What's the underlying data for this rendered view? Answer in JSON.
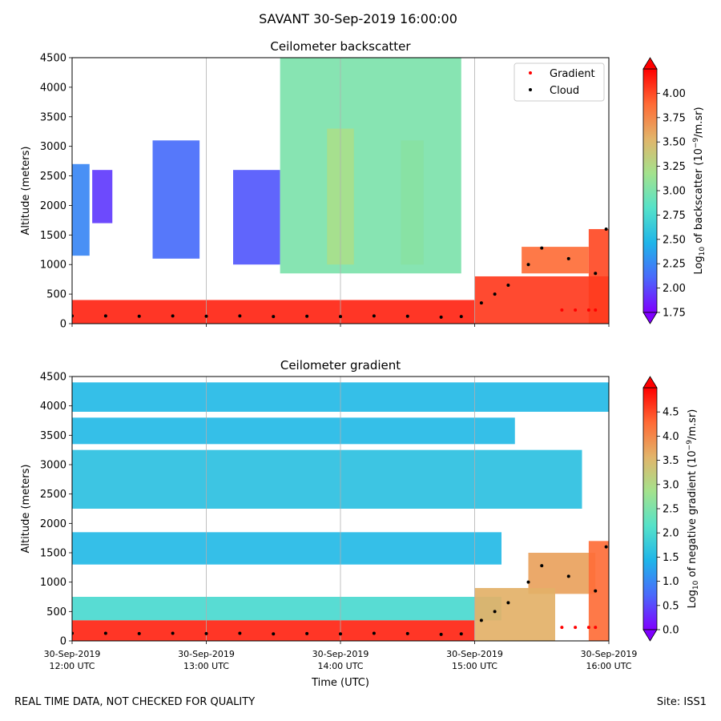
{
  "figure": {
    "title": "SAVANT 30-Sep-2019 16:00:00",
    "footer_left": "REAL TIME DATA, NOT CHECKED FOR QUALITY",
    "footer_right": "Site: ISS1"
  },
  "colors": {
    "cmap": [
      "#7f00ff",
      "#4a69fb",
      "#1fb5e9",
      "#55e2c9",
      "#a4e28d",
      "#e2b46a",
      "#ff6a35",
      "#ff0000"
    ],
    "gradient_marker": "#ff0000",
    "cloud_marker": "#000000",
    "gridline": "#b0b0b0"
  },
  "chart_data": [
    {
      "type": "heatmap",
      "title": "Ceilometer backscatter",
      "ylabel": "Altitude (meters)",
      "ylim": [
        0,
        4500
      ],
      "yticks": [
        0,
        500,
        1000,
        1500,
        2000,
        2500,
        3000,
        3500,
        4000,
        4500
      ],
      "xlim_hours": [
        12,
        16
      ],
      "x_gridlines_hours": [
        13,
        14,
        15
      ],
      "colorbar": {
        "label_prefix": "Log",
        "label_sub": "10",
        "label_mid": " of backscatter (10",
        "label_sup": "−9",
        "label_suffix": "/m.sr)",
        "range": [
          1.75,
          4.25
        ],
        "ticks": [
          "1.75",
          "2.00",
          "2.25",
          "2.50",
          "2.75",
          "3.00",
          "3.25",
          "3.50",
          "3.75",
          "4.00"
        ],
        "tick_values": [
          1.75,
          2.0,
          2.25,
          2.5,
          2.75,
          3.0,
          3.25,
          3.5,
          3.75,
          4.0
        ],
        "extend": "both"
      },
      "legend": {
        "placement": "top-right",
        "entries": [
          {
            "name": "Gradient",
            "marker": "dot-red"
          },
          {
            "name": "Cloud",
            "marker": "dot-black"
          }
        ]
      },
      "regions": [
        {
          "t0": 12.0,
          "t1": 12.13,
          "z0": 1150,
          "z1": 2700,
          "level": 0.2
        },
        {
          "t0": 12.15,
          "t1": 12.3,
          "z0": 1700,
          "z1": 2600,
          "level": 0.08
        },
        {
          "t0": 12.6,
          "t1": 12.95,
          "z0": 1100,
          "z1": 3100,
          "level": 0.15
        },
        {
          "t0": 13.2,
          "t1": 13.55,
          "z0": 1000,
          "z1": 2600,
          "level": 0.12
        },
        {
          "t0": 13.55,
          "t1": 14.9,
          "z0": 850,
          "z1": 4500,
          "level": 0.5
        },
        {
          "t0": 13.9,
          "t1": 14.1,
          "z0": 1000,
          "z1": 3300,
          "level": 0.58
        },
        {
          "t0": 14.45,
          "t1": 14.62,
          "z0": 1000,
          "z1": 3100,
          "level": 0.52
        },
        {
          "t0": 15.35,
          "t1": 15.85,
          "z0": 850,
          "z1": 1300,
          "level": 0.85
        },
        {
          "t0": 15.85,
          "t1": 16.0,
          "z0": 0,
          "z1": 1600,
          "level": 0.9
        },
        {
          "t0": 15.0,
          "t1": 16.0,
          "z0": 0,
          "z1": 800,
          "level": 0.92
        },
        {
          "t0": 12.0,
          "t1": 15.0,
          "z0": 0,
          "z1": 400,
          "level": 0.95
        }
      ],
      "gradient_series": {
        "name": "Gradient",
        "t": [
          15.65,
          15.75,
          15.85,
          15.9
        ],
        "z": [
          230,
          230,
          230,
          230
        ]
      },
      "cloud_series": {
        "name": "Cloud",
        "t": [
          12.0,
          12.25,
          12.5,
          12.75,
          13.0,
          13.25,
          13.5,
          13.75,
          14.0,
          14.25,
          14.5,
          14.75,
          14.9,
          15.05,
          15.15,
          15.25,
          15.4,
          15.5,
          15.7,
          15.9,
          15.98
        ],
        "z": [
          130,
          130,
          125,
          130,
          125,
          130,
          120,
          125,
          120,
          130,
          125,
          110,
          120,
          350,
          500,
          650,
          1000,
          1280,
          1100,
          850,
          1600
        ]
      }
    },
    {
      "type": "heatmap",
      "title": "Ceilometer gradient",
      "xlabel": "Time (UTC)",
      "ylabel": "Altitude (meters)",
      "ylim": [
        0,
        4500
      ],
      "yticks": [
        0,
        500,
        1000,
        1500,
        2000,
        2500,
        3000,
        3500,
        4000,
        4500
      ],
      "xlim_hours": [
        12,
        16
      ],
      "x_gridlines_hours": [
        13,
        14,
        15
      ],
      "x_ticks": [
        {
          "hour": 12,
          "date": "30-Sep-2019",
          "time": "12:00 UTC"
        },
        {
          "hour": 13,
          "date": "30-Sep-2019",
          "time": "13:00 UTC"
        },
        {
          "hour": 14,
          "date": "30-Sep-2019",
          "time": "14:00 UTC"
        },
        {
          "hour": 15,
          "date": "30-Sep-2019",
          "time": "15:00 UTC"
        },
        {
          "hour": 16,
          "date": "30-Sep-2019",
          "time": "16:00 UTC"
        }
      ],
      "colorbar": {
        "label_prefix": "Log",
        "label_sub": "10",
        "label_mid": " of negative gradient (10",
        "label_sup": "−9",
        "label_suffix": "/m.sr)",
        "range": [
          0.0,
          5.0
        ],
        "ticks": [
          "0.0",
          "0.5",
          "1.0",
          "1.5",
          "2.0",
          "2.5",
          "3.0",
          "3.5",
          "4.0",
          "4.5"
        ],
        "tick_values": [
          0.0,
          0.5,
          1.0,
          1.5,
          2.0,
          2.5,
          3.0,
          3.5,
          4.0,
          4.5
        ],
        "extend": "both"
      },
      "regions": [
        {
          "t0": 12.0,
          "t1": 16.0,
          "z0": 3900,
          "z1": 4400,
          "level": 0.3
        },
        {
          "t0": 12.0,
          "t1": 15.3,
          "z0": 3350,
          "z1": 3800,
          "level": 0.3
        },
        {
          "t0": 12.0,
          "t1": 15.8,
          "z0": 2250,
          "z1": 3250,
          "level": 0.32
        },
        {
          "t0": 12.0,
          "t1": 15.2,
          "z0": 1300,
          "z1": 1850,
          "level": 0.3
        },
        {
          "t0": 12.0,
          "t1": 15.2,
          "z0": 350,
          "z1": 750,
          "level": 0.4
        },
        {
          "t0": 15.4,
          "t1": 15.9,
          "z0": 800,
          "z1": 1500,
          "level": 0.75
        },
        {
          "t0": 15.0,
          "t1": 15.6,
          "z0": 0,
          "z1": 900,
          "level": 0.72
        },
        {
          "t0": 15.85,
          "t1": 16.0,
          "z0": 0,
          "z1": 1700,
          "level": 0.85
        },
        {
          "t0": 12.0,
          "t1": 15.0,
          "z0": 0,
          "z1": 350,
          "level": 0.95
        }
      ],
      "gradient_series": {
        "name": "Gradient",
        "t": [
          15.65,
          15.75,
          15.85,
          15.9
        ],
        "z": [
          230,
          230,
          230,
          230
        ]
      },
      "cloud_series": {
        "name": "Cloud",
        "t": [
          12.0,
          12.25,
          12.5,
          12.75,
          13.0,
          13.25,
          13.5,
          13.75,
          14.0,
          14.25,
          14.5,
          14.75,
          14.9,
          15.05,
          15.15,
          15.25,
          15.4,
          15.5,
          15.7,
          15.9,
          15.98
        ],
        "z": [
          130,
          130,
          125,
          130,
          125,
          130,
          120,
          125,
          120,
          130,
          125,
          110,
          120,
          350,
          500,
          650,
          1000,
          1280,
          1100,
          850,
          1600
        ]
      }
    }
  ]
}
